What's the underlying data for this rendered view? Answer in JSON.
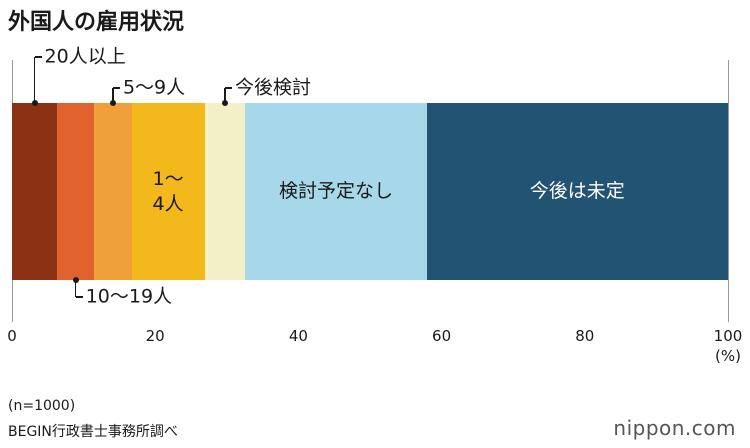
{
  "chart_data": {
    "type": "stacked_bar",
    "orientation": "horizontal",
    "title": "外国人の雇用状況",
    "series": [
      {
        "name": "20人以上",
        "color": "#8b3214",
        "values": [
          6.3
        ]
      },
      {
        "name": "10〜19人",
        "color": "#e0622c",
        "values": [
          5.2
        ]
      },
      {
        "name": "5〜9人",
        "color": "#f0a03a",
        "values": [
          5.2
        ]
      },
      {
        "name": "1〜\n4人",
        "color": "#f2b81c",
        "values": [
          10.2
        ]
      },
      {
        "name": "今後検討",
        "color": "#f3efc6",
        "values": [
          5.7
        ]
      },
      {
        "name": "検討予定なし",
        "color": "#a6d8ea",
        "values": [
          25.3
        ]
      },
      {
        "name": "今後は未定",
        "color": "#225373",
        "values": [
          42.1
        ]
      }
    ],
    "xlim": [
      0,
      100
    ],
    "xticks": [
      0,
      20,
      40,
      60,
      80,
      100
    ],
    "x_unit": "(%)",
    "notes": [
      "(n=1000)",
      "BEGIN行政書士事務所調べ"
    ]
  },
  "logo": "nippon.com"
}
